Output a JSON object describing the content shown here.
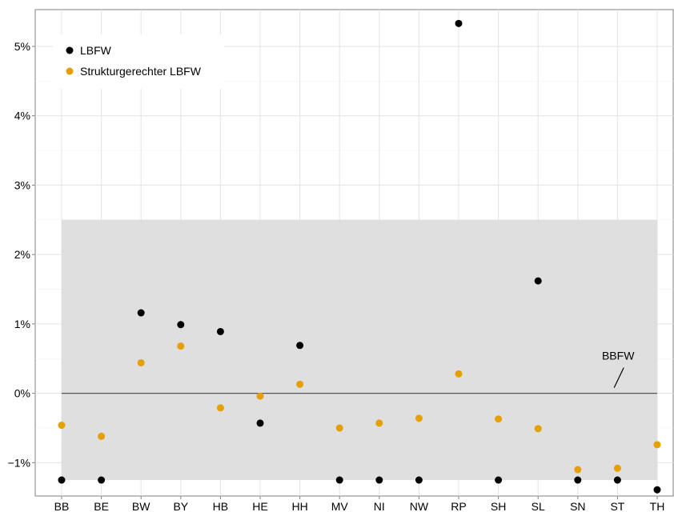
{
  "chart_data": {
    "type": "scatter",
    "categories": [
      "BB",
      "BE",
      "BW",
      "BY",
      "HB",
      "HE",
      "HH",
      "MV",
      "NI",
      "NW",
      "RP",
      "SH",
      "SL",
      "SN",
      "ST",
      "TH"
    ],
    "series": [
      {
        "name": "LBFW",
        "color": "#000000",
        "values": [
          -1.25,
          -1.25,
          1.16,
          0.99,
          0.89,
          -0.43,
          0.69,
          -1.25,
          -1.25,
          -1.25,
          5.33,
          -1.25,
          1.62,
          -1.25,
          -1.25,
          -1.39
        ]
      },
      {
        "name": "Strukturgerechter LBFW",
        "color": "#e69f00",
        "values": [
          -0.46,
          -0.62,
          0.44,
          0.68,
          -0.21,
          -0.04,
          0.13,
          -0.5,
          -0.43,
          -0.36,
          0.28,
          -0.37,
          -0.51,
          -1.1,
          -1.08,
          -0.74
        ]
      }
    ],
    "band": {
      "ymin": -1.25,
      "ymax": 2.5,
      "color": "#dddddd"
    },
    "reference_line": {
      "y": 0,
      "label": "BBFW",
      "label_x": "SL",
      "color": "#555555"
    },
    "y_ticks": [
      -1,
      0,
      1,
      2,
      3,
      4,
      5
    ],
    "y_tick_labels": [
      "−1%",
      "0%",
      "1%",
      "2%",
      "3%",
      "4%",
      "5%"
    ],
    "ylim": [
      -1.48,
      5.53
    ],
    "grid": true,
    "legend_position": "top-left",
    "title": "",
    "xlabel": "",
    "ylabel": ""
  }
}
